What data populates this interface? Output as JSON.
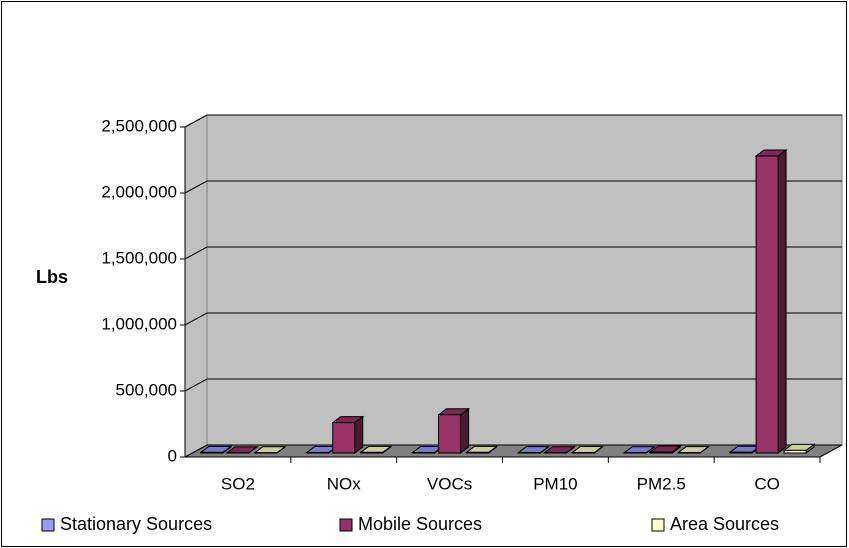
{
  "chart_data": {
    "type": "bar3d",
    "y_label": "Lbs",
    "categories": [
      "SO2",
      "NOx",
      "VOCs",
      "PM10",
      "PM2.5",
      "CO"
    ],
    "series": [
      {
        "name": "Stationary Sources",
        "color": "#9999ff",
        "values": [
          5000,
          4000,
          4000,
          3000,
          2000,
          6000
        ]
      },
      {
        "name": "Mobile Sources",
        "color": "#993366",
        "values": [
          1000,
          230000,
          290000,
          2000,
          8000,
          2250000
        ]
      },
      {
        "name": "Area Sources",
        "color": "#ffffcc",
        "values": [
          2000,
          5000,
          5000,
          4000,
          3000,
          20000
        ]
      }
    ],
    "ylim": [
      0,
      2500000
    ],
    "yticks": [
      0,
      {
        "value": 500000,
        "label": "500,000"
      },
      {
        "value": 1000000,
        "label": "1,000,000"
      },
      {
        "value": 1500000,
        "label": "1,500,000"
      },
      {
        "value": 2000000,
        "label": "2,000,000"
      },
      {
        "value": 2500000,
        "label": "2,500,000"
      }
    ],
    "grid": true,
    "legend": "bottom"
  }
}
